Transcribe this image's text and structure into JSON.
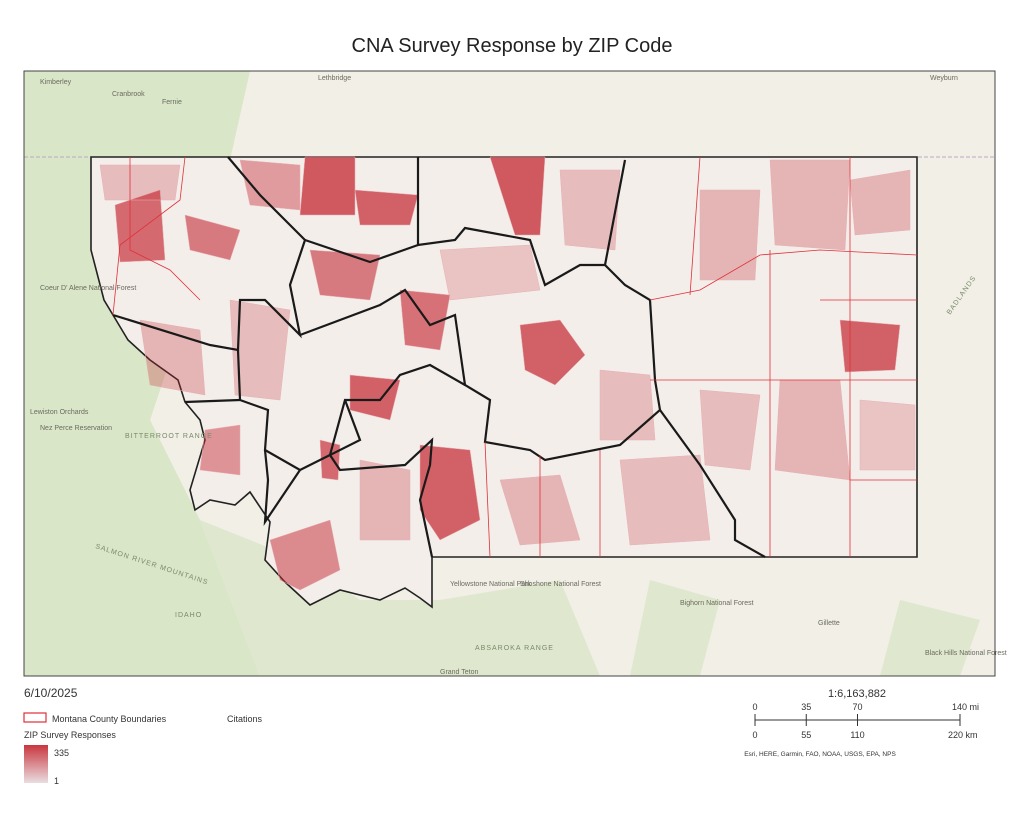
{
  "title": "CNA Survey Response by ZIP Code",
  "date": "6/10/2025",
  "legend": {
    "county_boundaries": "Montana County Boundaries",
    "citations": "Citations",
    "zip_title": "ZIP Survey Responses",
    "max": "335",
    "min": "1"
  },
  "scale": {
    "ratio": "1:6,163,882",
    "miles": [
      {
        "value": 0,
        "label": "0"
      },
      {
        "value": 35,
        "label": "35"
      },
      {
        "value": 70,
        "label": "70"
      },
      {
        "value": 140,
        "label": "140 mi"
      }
    ],
    "km": [
      {
        "value": 0,
        "label": "0"
      },
      {
        "value": 55,
        "label": "55"
      },
      {
        "value": 110,
        "label": "110"
      },
      {
        "value": 220,
        "label": "220 km"
      }
    ],
    "miles_lim": [
      0,
      140
    ],
    "km_lim": [
      0,
      220
    ]
  },
  "attribution": "Esri, HERE, Garmin, FAO, NOAA, USGS, EPA, NPS",
  "map_labels": [
    "Kimberley",
    "Cranbrook",
    "Fernie",
    "Lethbridge",
    "Weyburn",
    "Coeur D' Alene National Forest",
    "Lewiston Orchards",
    "Nez Perce Reservation",
    "BITTERROOT RANGE",
    "SALMON RIVER MOUNTAINS",
    "IDAHO",
    "Yellowstone National Park",
    "Shoshone National Forest",
    "ABSAROKA RANGE",
    "Bighorn National Forest",
    "Gillette",
    "Black Hills National Forest",
    "BADLANDS",
    "Grand Teton"
  ]
}
